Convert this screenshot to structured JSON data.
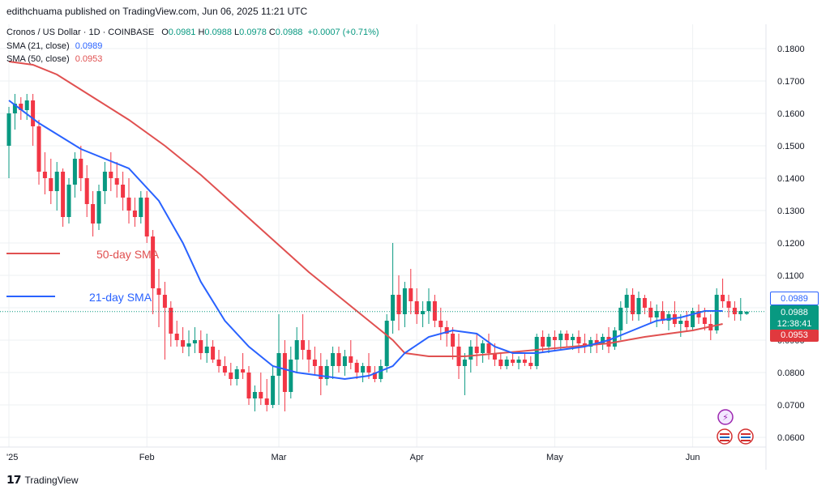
{
  "header": {
    "publisher_line": "edithchuama published on TradingView.com, Jun 06, 2025 11:21 UTC"
  },
  "legend": {
    "symbol": "Cronos / US Dollar · 1D · COINBASE",
    "ohlc": [
      {
        "key": "O",
        "value": "0.0981"
      },
      {
        "key": "H",
        "value": "0.0988"
      },
      {
        "key": "L",
        "value": "0.0978"
      },
      {
        "key": "C",
        "value": "0.0988"
      }
    ],
    "change": "+0.0007 (+0.71%)",
    "sma21": {
      "label": "SMA (21, close)",
      "value": "0.0989"
    },
    "sma50": {
      "label": "SMA (50, close)",
      "value": "0.0953"
    }
  },
  "annotations": {
    "sma50_label": "50-day SMA",
    "sma21_label": "21-day SMA"
  },
  "price_tags": {
    "sma21": "0.0989",
    "last_price": "0.0988",
    "countdown": "12:38:41",
    "sma50": "0.0953"
  },
  "footer": {
    "brand": "TradingView"
  },
  "colors": {
    "up": "#089981",
    "down": "#f23645",
    "sma21": "#2962ff",
    "sma50": "#e05050",
    "grid": "#eef0f3"
  },
  "chart_data": {
    "type": "candlestick",
    "title": "Cronos / US Dollar · 1D · COINBASE",
    "y_axis": {
      "ticks": [
        0.18,
        0.17,
        0.16,
        0.15,
        0.14,
        0.13,
        0.12,
        0.11,
        0.1,
        0.09,
        0.08,
        0.07,
        0.06
      ],
      "tick_labels": [
        "0.1800",
        "0.1700",
        "0.1600",
        "0.1500",
        "0.1400",
        "0.1300",
        "0.1200",
        "0.1100",
        "0.1000",
        "0.0900",
        "0.0800",
        "0.0700",
        "0.0600"
      ],
      "ylim": [
        0.055,
        0.187
      ]
    },
    "x_axis": {
      "tick_labels": [
        "2025",
        "Feb",
        "Mar",
        "Apr",
        "May",
        "Jun"
      ],
      "visible_tick_labels": [
        "'25",
        "Feb",
        "Mar",
        "Apr",
        "May",
        "Jun"
      ]
    },
    "candles": [
      [
        0.15,
        0.162,
        0.14,
        0.16
      ],
      [
        0.16,
        0.166,
        0.155,
        0.163
      ],
      [
        0.163,
        0.165,
        0.158,
        0.161
      ],
      [
        0.161,
        0.166,
        0.158,
        0.164
      ],
      [
        0.164,
        0.166,
        0.15,
        0.156
      ],
      [
        0.156,
        0.158,
        0.138,
        0.142
      ],
      [
        0.142,
        0.148,
        0.135,
        0.14
      ],
      [
        0.14,
        0.146,
        0.132,
        0.136
      ],
      [
        0.136,
        0.145,
        0.13,
        0.142
      ],
      [
        0.142,
        0.143,
        0.125,
        0.128
      ],
      [
        0.128,
        0.14,
        0.126,
        0.138
      ],
      [
        0.138,
        0.148,
        0.134,
        0.146
      ],
      [
        0.146,
        0.15,
        0.136,
        0.14
      ],
      [
        0.14,
        0.144,
        0.128,
        0.132
      ],
      [
        0.132,
        0.136,
        0.122,
        0.126
      ],
      [
        0.126,
        0.138,
        0.124,
        0.136
      ],
      [
        0.136,
        0.145,
        0.132,
        0.142
      ],
      [
        0.142,
        0.148,
        0.136,
        0.14
      ],
      [
        0.14,
        0.145,
        0.134,
        0.138
      ],
      [
        0.138,
        0.142,
        0.13,
        0.134
      ],
      [
        0.134,
        0.14,
        0.126,
        0.13
      ],
      [
        0.13,
        0.134,
        0.125,
        0.128
      ],
      [
        0.128,
        0.136,
        0.126,
        0.134
      ],
      [
        0.134,
        0.136,
        0.12,
        0.122
      ],
      [
        0.122,
        0.124,
        0.098,
        0.106
      ],
      [
        0.106,
        0.112,
        0.094,
        0.104
      ],
      [
        0.104,
        0.108,
        0.084,
        0.1
      ],
      [
        0.1,
        0.102,
        0.088,
        0.092
      ],
      [
        0.092,
        0.096,
        0.088,
        0.09
      ],
      [
        0.09,
        0.094,
        0.086,
        0.088
      ],
      [
        0.088,
        0.093,
        0.085,
        0.089
      ],
      [
        0.089,
        0.094,
        0.086,
        0.09
      ],
      [
        0.09,
        0.093,
        0.084,
        0.086
      ],
      [
        0.086,
        0.092,
        0.083,
        0.088
      ],
      [
        0.088,
        0.09,
        0.083,
        0.084
      ],
      [
        0.084,
        0.087,
        0.08,
        0.082
      ],
      [
        0.082,
        0.085,
        0.079,
        0.08
      ],
      [
        0.08,
        0.083,
        0.076,
        0.078
      ],
      [
        0.078,
        0.082,
        0.076,
        0.081
      ],
      [
        0.081,
        0.086,
        0.078,
        0.08
      ],
      [
        0.08,
        0.082,
        0.07,
        0.072
      ],
      [
        0.072,
        0.076,
        0.068,
        0.074
      ],
      [
        0.074,
        0.08,
        0.07,
        0.072
      ],
      [
        0.072,
        0.078,
        0.068,
        0.07
      ],
      [
        0.07,
        0.082,
        0.069,
        0.079
      ],
      [
        0.079,
        0.098,
        0.07,
        0.086
      ],
      [
        0.086,
        0.09,
        0.068,
        0.074
      ],
      [
        0.074,
        0.088,
        0.072,
        0.084
      ],
      [
        0.084,
        0.094,
        0.08,
        0.09
      ],
      [
        0.09,
        0.098,
        0.084,
        0.087
      ],
      [
        0.087,
        0.09,
        0.08,
        0.084
      ],
      [
        0.084,
        0.088,
        0.079,
        0.082
      ],
      [
        0.082,
        0.086,
        0.073,
        0.078
      ],
      [
        0.078,
        0.084,
        0.076,
        0.082
      ],
      [
        0.082,
        0.088,
        0.078,
        0.086
      ],
      [
        0.086,
        0.088,
        0.08,
        0.082
      ],
      [
        0.082,
        0.087,
        0.079,
        0.085
      ],
      [
        0.085,
        0.09,
        0.081,
        0.083
      ],
      [
        0.083,
        0.084,
        0.078,
        0.08
      ],
      [
        0.08,
        0.083,
        0.077,
        0.082
      ],
      [
        0.082,
        0.086,
        0.078,
        0.08
      ],
      [
        0.08,
        0.082,
        0.077,
        0.078
      ],
      [
        0.078,
        0.084,
        0.077,
        0.082
      ],
      [
        0.082,
        0.098,
        0.08,
        0.096
      ],
      [
        0.096,
        0.12,
        0.092,
        0.104
      ],
      [
        0.104,
        0.11,
        0.093,
        0.098
      ],
      [
        0.098,
        0.108,
        0.094,
        0.106
      ],
      [
        0.106,
        0.112,
        0.098,
        0.102
      ],
      [
        0.102,
        0.106,
        0.095,
        0.098
      ],
      [
        0.098,
        0.102,
        0.094,
        0.099
      ],
      [
        0.099,
        0.106,
        0.095,
        0.102
      ],
      [
        0.102,
        0.104,
        0.094,
        0.096
      ],
      [
        0.096,
        0.1,
        0.09,
        0.094
      ],
      [
        0.094,
        0.096,
        0.088,
        0.092
      ],
      [
        0.092,
        0.094,
        0.084,
        0.088
      ],
      [
        0.088,
        0.092,
        0.078,
        0.082
      ],
      [
        0.082,
        0.086,
        0.073,
        0.084
      ],
      [
        0.084,
        0.09,
        0.08,
        0.088
      ],
      [
        0.088,
        0.092,
        0.082,
        0.086
      ],
      [
        0.086,
        0.09,
        0.083,
        0.089
      ],
      [
        0.089,
        0.092,
        0.084,
        0.086
      ],
      [
        0.086,
        0.089,
        0.082,
        0.084
      ],
      [
        0.084,
        0.086,
        0.081,
        0.082
      ],
      [
        0.082,
        0.085,
        0.081,
        0.084
      ],
      [
        0.084,
        0.086,
        0.082,
        0.083
      ],
      [
        0.083,
        0.085,
        0.081,
        0.084
      ],
      [
        0.084,
        0.086,
        0.082,
        0.083
      ],
      [
        0.083,
        0.085,
        0.081,
        0.082
      ],
      [
        0.082,
        0.092,
        0.081,
        0.091
      ],
      [
        0.091,
        0.093,
        0.086,
        0.088
      ],
      [
        0.088,
        0.092,
        0.086,
        0.091
      ],
      [
        0.091,
        0.093,
        0.087,
        0.09
      ],
      [
        0.09,
        0.093,
        0.087,
        0.092
      ],
      [
        0.092,
        0.093,
        0.088,
        0.09
      ],
      [
        0.09,
        0.092,
        0.087,
        0.091
      ],
      [
        0.091,
        0.093,
        0.086,
        0.089
      ],
      [
        0.089,
        0.092,
        0.086,
        0.088
      ],
      [
        0.088,
        0.091,
        0.086,
        0.09
      ],
      [
        0.09,
        0.092,
        0.086,
        0.089
      ],
      [
        0.089,
        0.092,
        0.087,
        0.091
      ],
      [
        0.091,
        0.094,
        0.086,
        0.088
      ],
      [
        0.088,
        0.094,
        0.087,
        0.093
      ],
      [
        0.093,
        0.102,
        0.09,
        0.1
      ],
      [
        0.1,
        0.106,
        0.095,
        0.104
      ],
      [
        0.104,
        0.106,
        0.096,
        0.098
      ],
      [
        0.098,
        0.105,
        0.096,
        0.103
      ],
      [
        0.103,
        0.104,
        0.098,
        0.1
      ],
      [
        0.1,
        0.102,
        0.095,
        0.097
      ],
      [
        0.097,
        0.101,
        0.094,
        0.099
      ],
      [
        0.099,
        0.102,
        0.095,
        0.096
      ],
      [
        0.096,
        0.099,
        0.093,
        0.098
      ],
      [
        0.098,
        0.102,
        0.094,
        0.095
      ],
      [
        0.095,
        0.098,
        0.091,
        0.096
      ],
      [
        0.096,
        0.099,
        0.093,
        0.094
      ],
      [
        0.094,
        0.1,
        0.093,
        0.099
      ],
      [
        0.099,
        0.101,
        0.095,
        0.097
      ],
      [
        0.097,
        0.1,
        0.093,
        0.095
      ],
      [
        0.095,
        0.098,
        0.09,
        0.093
      ],
      [
        0.093,
        0.106,
        0.092,
        0.104
      ],
      [
        0.104,
        0.109,
        0.1,
        0.102
      ],
      [
        0.102,
        0.104,
        0.097,
        0.1
      ],
      [
        0.1,
        0.102,
        0.096,
        0.098
      ],
      [
        0.098,
        0.103,
        0.096,
        0.099
      ],
      [
        0.0981,
        0.0988,
        0.0978,
        0.0988
      ]
    ],
    "sma21_approx": [
      [
        0,
        0.164
      ],
      [
        5,
        0.157
      ],
      [
        12,
        0.149
      ],
      [
        20,
        0.143
      ],
      [
        25,
        0.133
      ],
      [
        29,
        0.12
      ],
      [
        32,
        0.108
      ],
      [
        36,
        0.096
      ],
      [
        40,
        0.088
      ],
      [
        44,
        0.082
      ],
      [
        48,
        0.08
      ],
      [
        52,
        0.079
      ],
      [
        56,
        0.078
      ],
      [
        60,
        0.079
      ],
      [
        64,
        0.082
      ],
      [
        66,
        0.086
      ],
      [
        70,
        0.091
      ],
      [
        74,
        0.093
      ],
      [
        78,
        0.092
      ],
      [
        81,
        0.088
      ],
      [
        84,
        0.086
      ],
      [
        88,
        0.086
      ],
      [
        92,
        0.087
      ],
      [
        96,
        0.088
      ],
      [
        100,
        0.09
      ],
      [
        104,
        0.093
      ],
      [
        108,
        0.096
      ],
      [
        112,
        0.097
      ],
      [
        116,
        0.099
      ],
      [
        119,
        0.099
      ]
    ],
    "sma50_approx": [
      [
        0,
        0.176
      ],
      [
        4,
        0.175
      ],
      [
        8,
        0.172
      ],
      [
        14,
        0.165
      ],
      [
        20,
        0.158
      ],
      [
        26,
        0.15
      ],
      [
        32,
        0.141
      ],
      [
        38,
        0.131
      ],
      [
        44,
        0.121
      ],
      [
        50,
        0.111
      ],
      [
        56,
        0.102
      ],
      [
        60,
        0.096
      ],
      [
        64,
        0.09
      ],
      [
        66,
        0.086
      ],
      [
        70,
        0.085
      ],
      [
        76,
        0.085
      ],
      [
        82,
        0.086
      ],
      [
        88,
        0.087
      ],
      [
        94,
        0.088
      ],
      [
        100,
        0.089
      ],
      [
        106,
        0.091
      ],
      [
        110,
        0.092
      ],
      [
        114,
        0.093
      ],
      [
        119,
        0.095
      ]
    ],
    "current_price": 0.0988,
    "sma21_last": 0.0989,
    "sma50_last": 0.0953
  }
}
